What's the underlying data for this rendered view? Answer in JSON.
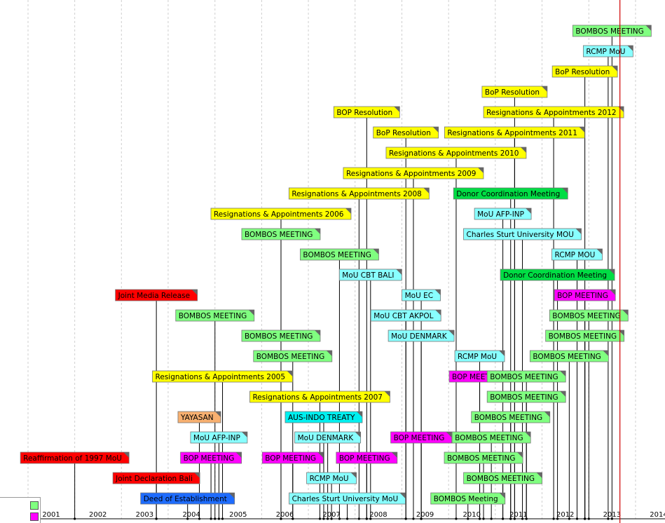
{
  "legend": {
    "items": [
      {
        "color": "#80ff80"
      },
      {
        "color": "#ff00ff"
      }
    ]
  },
  "chart_data": {
    "type": "timeline",
    "xlim": [
      "2001-01-01",
      "2014-07-01"
    ],
    "x_ticks": [
      "2001",
      "2002",
      "2003",
      "2004",
      "2005",
      "2006",
      "2007",
      "2008",
      "2009",
      "2010",
      "2011",
      "2012",
      "2013",
      "2014"
    ],
    "current_date_marker": "2013-09-01",
    "category_colors": {
      "red": "#ff0000",
      "blue": "#1e6cff",
      "orange": "#f8b070",
      "cyan": "#88ffff",
      "magenta": "#ff00ff",
      "yellow": "#ffff00",
      "green": "#80ff80",
      "darkgreen": "#00dd44",
      "aqua": "#00f0f0"
    },
    "events": [
      {
        "label": "Reaffirmation of 1997 MoU",
        "date": "2002-01-01",
        "color": "red",
        "lane": 2
      },
      {
        "label": "Joint Declaration Bali",
        "date": "2003-10-01",
        "color": "red",
        "lane": 1
      },
      {
        "label": "Joint Media Release",
        "date": "2003-10-01",
        "color": "red",
        "lane": 10
      },
      {
        "label": "Deed of Establishment",
        "date": "2004-06-01",
        "color": "blue",
        "lane": 0
      },
      {
        "label": "YAYASAN",
        "date": "2004-09-01",
        "color": "orange",
        "lane": 4
      },
      {
        "label": "MoU AFP-INP",
        "date": "2005-02-01",
        "color": "cyan",
        "lane": 3
      },
      {
        "label": "BOP MEETING",
        "date": "2004-12-01",
        "color": "magenta",
        "lane": 2
      },
      {
        "label": "Resignations & Appointments 2005",
        "date": "2005-03-01",
        "color": "yellow",
        "lane": 6
      },
      {
        "label": "BOMBOS MEETING",
        "date": "2005-01-01",
        "color": "green",
        "lane": 9
      },
      {
        "label": "Resignations & Appointments 2006",
        "date": "2006-06-01",
        "color": "yellow",
        "lane": 14
      },
      {
        "label": "BOMBOS MEETING",
        "date": "2006-06-01",
        "color": "green",
        "lane": 13
      },
      {
        "label": "BOMBOS MEETING",
        "date": "2006-06-01",
        "color": "green",
        "lane": 8
      },
      {
        "label": "BOMBOS MEETING",
        "date": "2006-09-01",
        "color": "green",
        "lane": 7
      },
      {
        "label": "Resignations & Appointments 2007",
        "date": "2007-04-01",
        "color": "yellow",
        "lane": 5
      },
      {
        "label": "BOP MEETING",
        "date": "2006-09-01",
        "color": "magenta",
        "lane": 2
      },
      {
        "label": "AUS-INDO TREATY",
        "date": "2007-05-01",
        "color": "aqua",
        "lane": 4
      },
      {
        "label": "MoU DENMARK",
        "date": "2007-06-01",
        "color": "cyan",
        "lane": 3
      },
      {
        "label": "RCMP MoU",
        "date": "2007-07-01",
        "color": "cyan",
        "lane": 1
      },
      {
        "label": "Charles Sturt University MoU",
        "date": "2007-11-01",
        "color": "cyan",
        "lane": 0
      },
      {
        "label": "BOMBOS MEETING",
        "date": "2007-09-01",
        "color": "green",
        "lane": 12
      },
      {
        "label": "Resignations & Appointments 2008",
        "date": "2008-02-01",
        "color": "yellow",
        "lane": 15
      },
      {
        "label": "BOP Resolution",
        "date": "2008-04-01",
        "color": "yellow",
        "lane": 19
      },
      {
        "label": "BOP MEETING",
        "date": "2008-04-01",
        "color": "magenta",
        "lane": 2
      },
      {
        "label": "MoU CBT BALI",
        "date": "2008-05-01",
        "color": "cyan",
        "lane": 11
      },
      {
        "label": "Resignations & Appointments 2009",
        "date": "2009-04-01",
        "color": "yellow",
        "lane": 16
      },
      {
        "label": "BoP Resolution",
        "date": "2009-02-01",
        "color": "yellow",
        "lane": 18
      },
      {
        "label": "MoU CBT AKPOL",
        "date": "2009-02-01",
        "color": "cyan",
        "lane": 9
      },
      {
        "label": "MoU DENMARK",
        "date": "2009-06-01",
        "color": "cyan",
        "lane": 8
      },
      {
        "label": "BOP MEETING",
        "date": "2009-06-01",
        "color": "magenta",
        "lane": 3
      },
      {
        "label": "MoU EC",
        "date": "2009-06-01",
        "color": "cyan",
        "lane": 10
      },
      {
        "label": "Resignations & Appointments 2010",
        "date": "2010-03-01",
        "color": "yellow",
        "lane": 17
      },
      {
        "label": "BOMBOS Meeting",
        "date": "2010-06-01",
        "color": "green",
        "lane": 0
      },
      {
        "label": "RCMP MoU",
        "date": "2010-09-01",
        "color": "cyan",
        "lane": 7
      },
      {
        "label": "BOP MEETING",
        "date": "2010-09-01",
        "color": "magenta",
        "lane": 6
      },
      {
        "label": "Donor Coordination Meeting",
        "date": "2011-05-01",
        "color": "darkgreen",
        "lane": 15
      },
      {
        "label": "MoU AFP-INP",
        "date": "2011-03-01",
        "color": "cyan",
        "lane": 14
      },
      {
        "label": "Charles Sturt University MOU",
        "date": "2011-08-01",
        "color": "cyan",
        "lane": 13
      },
      {
        "label": "Resignations & Appointments 2011",
        "date": "2011-06-01",
        "color": "yellow",
        "lane": 18
      },
      {
        "label": "BoP Resolution",
        "date": "2011-06-01",
        "color": "yellow",
        "lane": 20
      },
      {
        "label": "BOMBOS MEETING",
        "date": "2010-10-01",
        "color": "green",
        "lane": 2
      },
      {
        "label": "BOMBOS MEETING",
        "date": "2011-03-01",
        "color": "green",
        "lane": 1
      },
      {
        "label": "BOMBOS MEETING",
        "date": "2010-12-01",
        "color": "green",
        "lane": 3
      },
      {
        "label": "BOMBOS MEETING",
        "date": "2011-05-01",
        "color": "green",
        "lane": 4
      },
      {
        "label": "BOMBOS MEETING",
        "date": "2011-09-01",
        "color": "green",
        "lane": 5
      },
      {
        "label": "BOMBOS MEETING",
        "date": "2011-09-01",
        "color": "green",
        "lane": 6
      },
      {
        "label": "Resignations & Appointments 2012",
        "date": "2012-04-01",
        "color": "yellow",
        "lane": 19
      },
      {
        "label": "Donor Coordination Meeting",
        "date": "2012-05-01",
        "color": "darkgreen",
        "lane": 11
      },
      {
        "label": "RCMP MOU",
        "date": "2012-10-01",
        "color": "cyan",
        "lane": 12
      },
      {
        "label": "BOMBOS MEETING",
        "date": "2012-08-01",
        "color": "green",
        "lane": 7
      },
      {
        "label": "BOMBOS MEETING",
        "date": "2012-12-01",
        "color": "green",
        "lane": 8
      },
      {
        "label": "BOP MEETING",
        "date": "2012-12-01",
        "color": "magenta",
        "lane": 10
      },
      {
        "label": "BOMBOS MEETING",
        "date": "2013-01-01",
        "color": "green",
        "lane": 9
      },
      {
        "label": "BoP Resolution",
        "date": "2012-12-01",
        "color": "yellow",
        "lane": 21
      },
      {
        "label": "RCMP MoU",
        "date": "2013-06-01",
        "color": "cyan",
        "lane": 22
      },
      {
        "label": "BOMBOS MEETING",
        "date": "2013-07-01",
        "color": "green",
        "lane": 23
      }
    ]
  }
}
